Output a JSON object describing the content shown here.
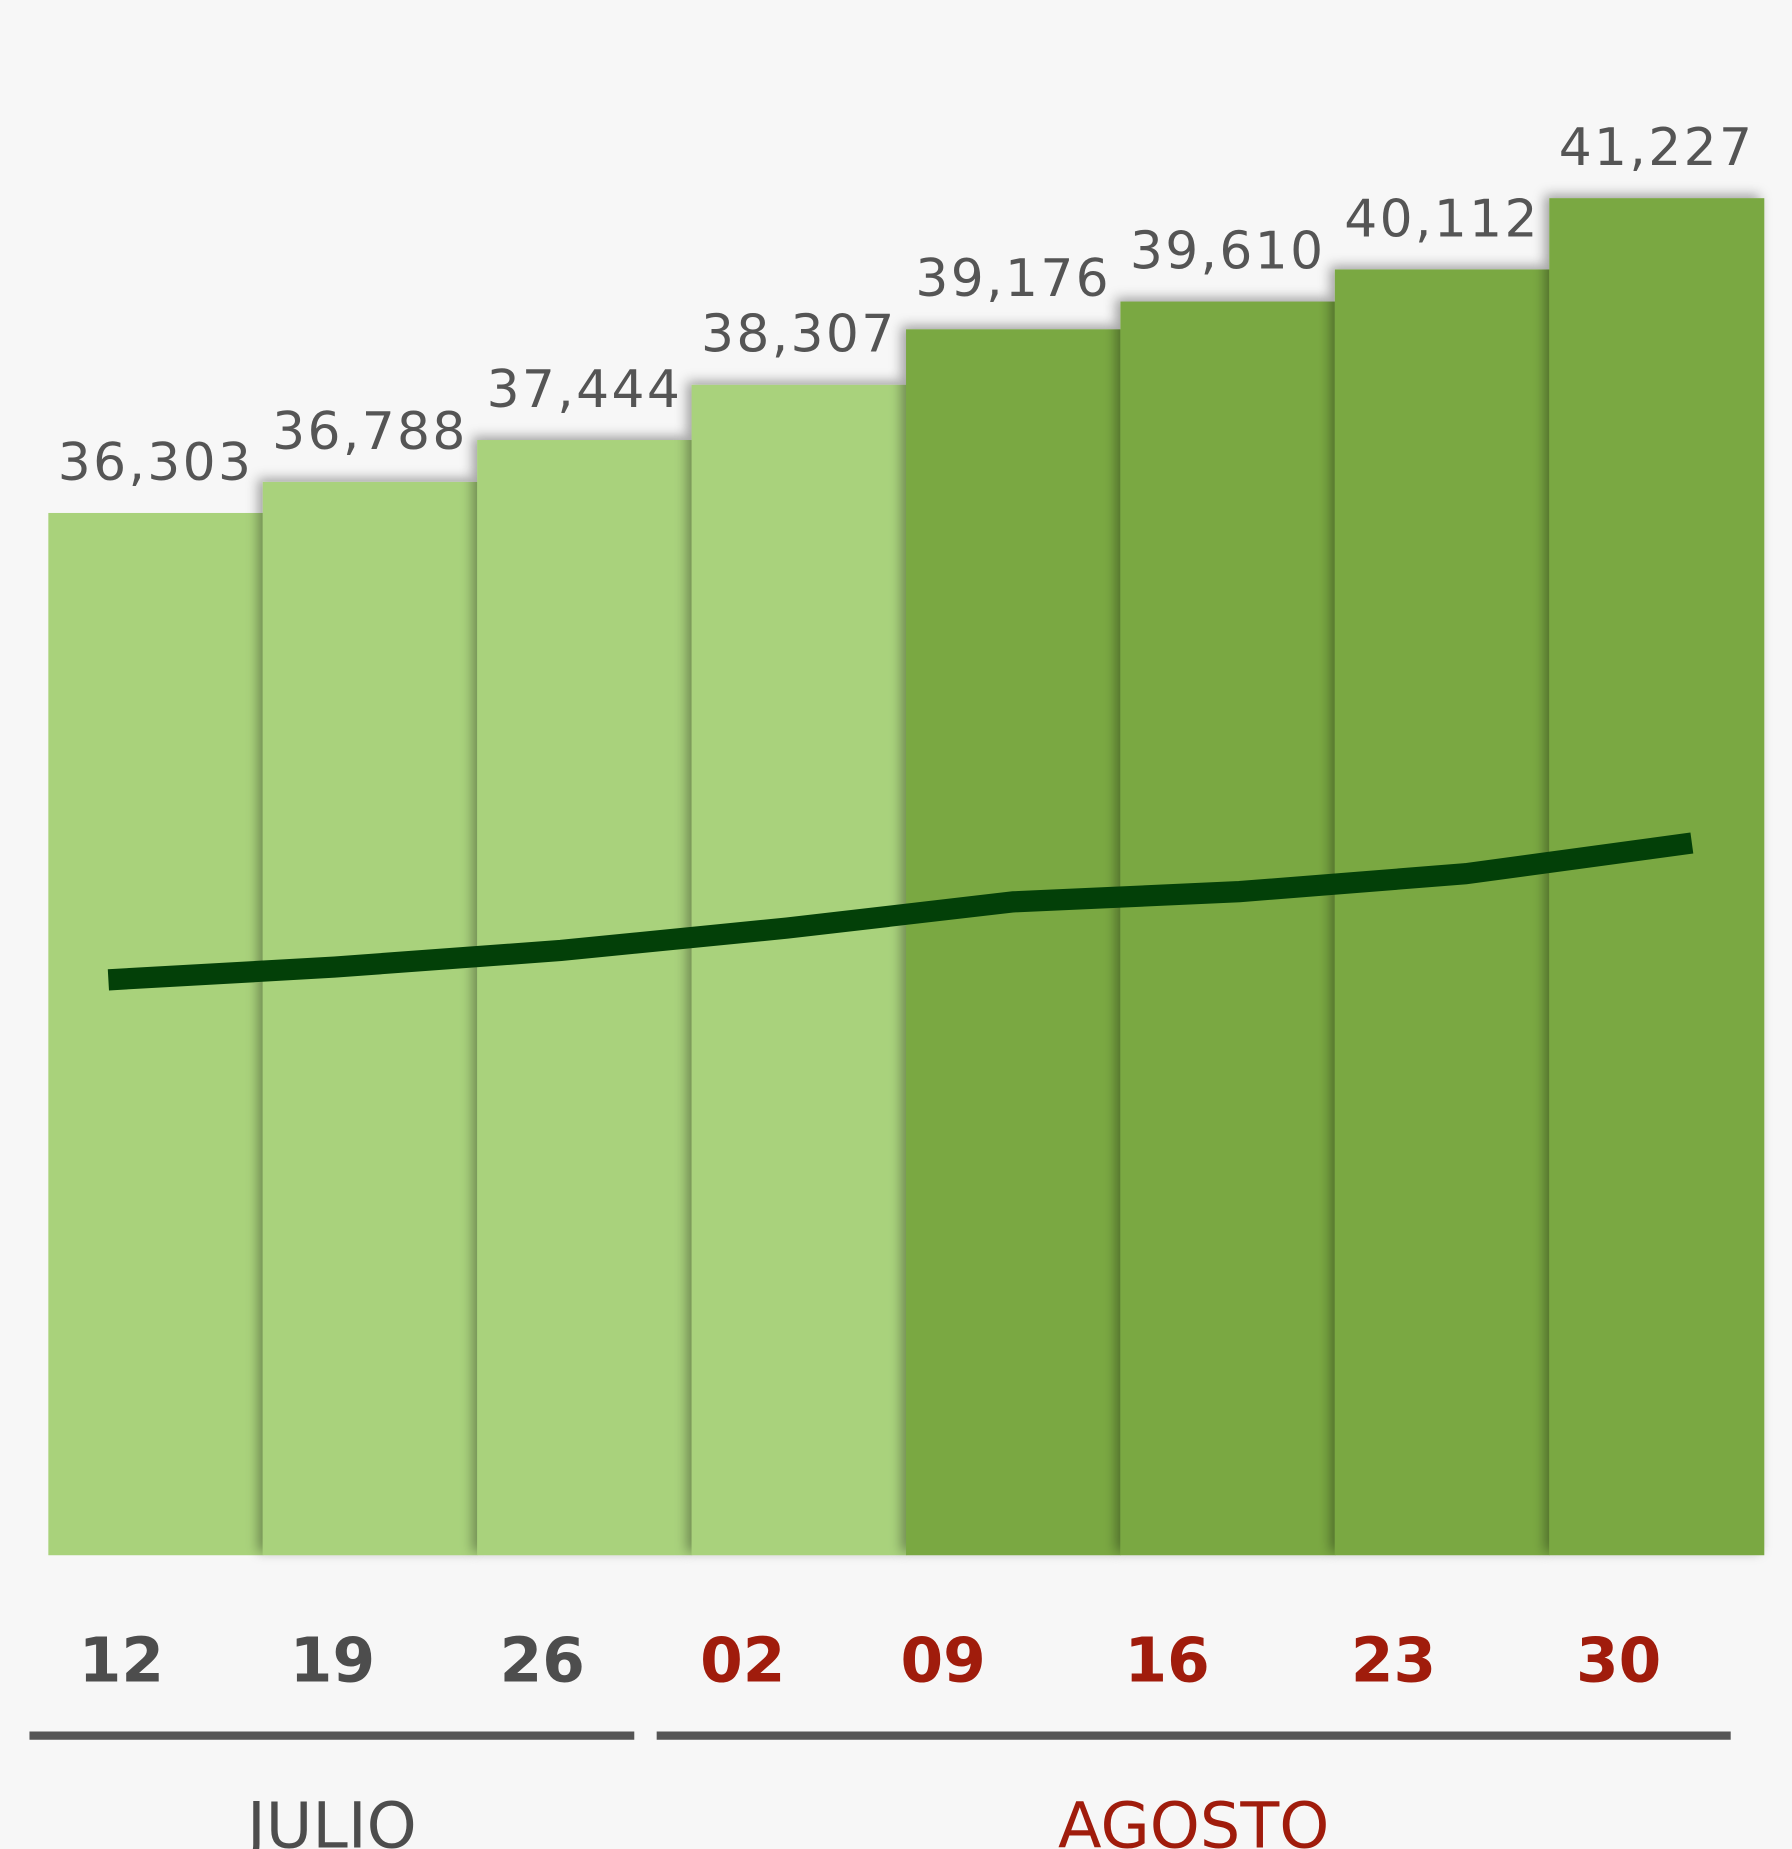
{
  "chart_data": {
    "type": "bar",
    "categories": [
      "12",
      "19",
      "26",
      "02",
      "09",
      "16",
      "23",
      "30"
    ],
    "category_colors": [
      "#4d4d4d",
      "#4d4d4d",
      "#4d4d4d",
      "#a01c0c",
      "#a01c0c",
      "#a01c0c",
      "#a01c0c",
      "#a01c0c"
    ],
    "series": [
      {
        "type": "bar",
        "colors": [
          "#a9d27b",
          "#a9d27b",
          "#a9d27b",
          "#a9d27b",
          "#7aa843",
          "#7aa843",
          "#7aa843",
          "#7aa843"
        ],
        "values": [
          36303,
          36788,
          37444,
          38307,
          39176,
          39610,
          40112,
          41227
        ],
        "value_labels": [
          "36,303",
          "36,788",
          "37,444",
          "38,307",
          "39,176",
          "39,610",
          "40,112",
          "41,227"
        ]
      },
      {
        "type": "line",
        "color": "#034008",
        "values": [
          29000,
          29200,
          29460,
          29810,
          30220,
          30380,
          30660,
          31140
        ]
      }
    ],
    "groups": [
      {
        "label": "JULIO",
        "color": "#4d4d4d"
      },
      {
        "label": "AGOSTO",
        "color": "#a01c0c"
      }
    ],
    "ylim": [
      20000,
      42000
    ]
  }
}
